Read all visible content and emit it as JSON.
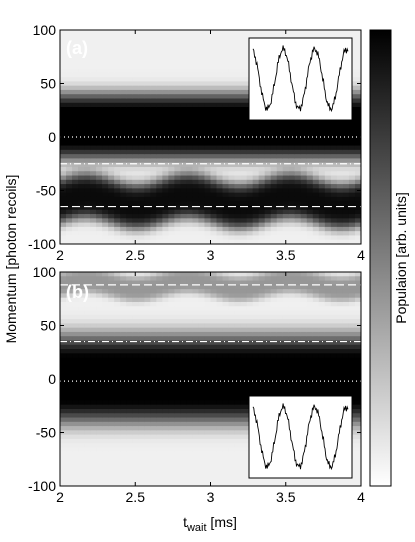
{
  "chart_data": [
    {
      "type": "heatmap",
      "panel_label": "(a)",
      "xlim": [
        2,
        4
      ],
      "ylim": [
        -100,
        100
      ],
      "x_ticks": [
        "2",
        "2.5",
        "3",
        "3.5",
        "4"
      ],
      "x_tick_values": [
        2,
        2.5,
        3,
        3.5,
        4
      ],
      "y_ticks": [
        "100",
        "50",
        "0",
        "-50",
        "-100"
      ],
      "y_tick_values": [
        100,
        50,
        0,
        -50,
        -100
      ],
      "bands": [
        {
          "center": 10,
          "width": 32,
          "amplitude": 1.0
        },
        {
          "center": -60,
          "width": 22,
          "amplitude": 0.9,
          "oscillation_amplitude": 5,
          "oscillation_period_ms": 0.68
        }
      ],
      "reference_lines": [
        {
          "style": "dotted",
          "y": 0
        },
        {
          "style": "dash-dot",
          "y": -25
        },
        {
          "style": "dashed",
          "y": -65
        }
      ],
      "inset": {
        "position": "top-right",
        "type": "line",
        "shape": "sinusoid",
        "periods": 3
      }
    },
    {
      "type": "heatmap",
      "panel_label": "(b)",
      "xlim": [
        2,
        4
      ],
      "ylim": [
        -100,
        100
      ],
      "x_ticks": [
        "2",
        "2.5",
        "3",
        "3.5",
        "4"
      ],
      "x_tick_values": [
        2,
        2.5,
        3,
        3.5,
        4
      ],
      "y_ticks": [
        "100",
        "50",
        "0",
        "-50",
        "-100"
      ],
      "y_tick_values": [
        100,
        50,
        0,
        -50,
        -100
      ],
      "bands": [
        {
          "center": 0,
          "width": 42,
          "amplitude": 1.0
        },
        {
          "center": 88,
          "width": 12,
          "amplitude": 0.35,
          "oscillation_amplitude": 4,
          "oscillation_period_ms": 0.68
        }
      ],
      "reference_lines": [
        {
          "style": "dashed",
          "y": 88
        },
        {
          "style": "dash-dot",
          "y": 35
        },
        {
          "style": "dotted",
          "y": -2
        }
      ],
      "inset": {
        "position": "bottom-right",
        "type": "line",
        "shape": "sinusoid",
        "periods": 3
      }
    }
  ],
  "axes": {
    "xlabel_main": "t",
    "xlabel_sub": "wait",
    "xlabel_unit": " [ms]",
    "ylabel": "Momentum [photon recoils]"
  },
  "colorbar": {
    "label": "Populaion [arb. units]",
    "colormap": "gray-reversed"
  },
  "colors": {
    "background": "#ffffff",
    "low": "#ffffff",
    "high": "#000000",
    "reference_line": "#ffffff"
  }
}
